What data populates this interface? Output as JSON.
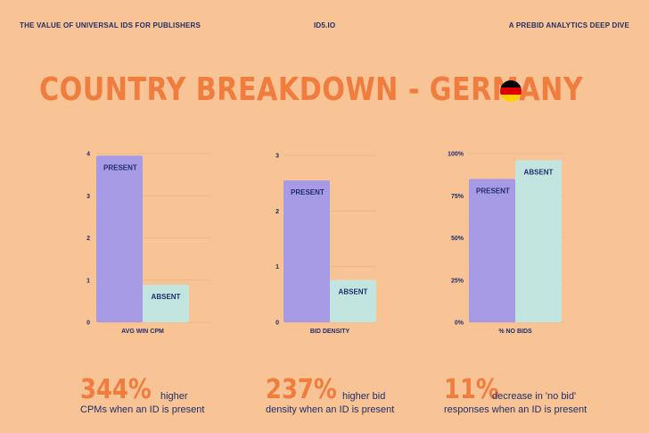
{
  "header": {
    "left": "THE VALUE OF UNIVERSAL IDS FOR PUBLISHERS",
    "center": "ID5.IO",
    "right": "A PREBID ANALYTICS DEEP DIVE"
  },
  "title": "COUNTRY BREAKDOWN - GERMANY",
  "flag": {
    "name": "germany-flag-icon",
    "colors": [
      "#000000",
      "#dd0000",
      "#ffce00"
    ]
  },
  "colors": {
    "present": "#a89be6",
    "absent": "#c3e5e0",
    "background": "#f8c496",
    "accent": "#f07c3e",
    "text": "#1f2d6b"
  },
  "chart_data": [
    {
      "type": "bar",
      "categories": [
        "PRESENT",
        "ABSENT"
      ],
      "values": [
        3.95,
        0.89
      ],
      "xlabel": "AVG WIN CPM",
      "ylabel": "",
      "ylim": [
        0,
        4
      ],
      "yticks": [
        "0",
        "1",
        "2",
        "3",
        "4"
      ],
      "grid": true
    },
    {
      "type": "bar",
      "categories": [
        "PRESENT",
        "ABSENT"
      ],
      "values": [
        2.55,
        0.76
      ],
      "xlabel": "BID DENSITY",
      "ylabel": "",
      "ylim": [
        0,
        3
      ],
      "yticks": [
        "0",
        "1",
        "2",
        "3"
      ],
      "grid": true
    },
    {
      "type": "bar",
      "categories": [
        "PRESENT",
        "ABSENT"
      ],
      "values": [
        85,
        96
      ],
      "xlabel": "% NO BIDS",
      "ylabel": "",
      "ylim": [
        0,
        100
      ],
      "yticks": [
        "0%",
        "25%",
        "50%",
        "75%",
        "100%"
      ],
      "grid": true
    }
  ],
  "stats": [
    {
      "value": "344%",
      "line1": "higher",
      "line2": "CPMs when an ID is present"
    },
    {
      "value": "237%",
      "line1": "higher bid",
      "line2": "density when an ID is present"
    },
    {
      "value": "11%",
      "line1": "decrease in 'no bid'",
      "line2": "responses when an ID is present"
    }
  ]
}
